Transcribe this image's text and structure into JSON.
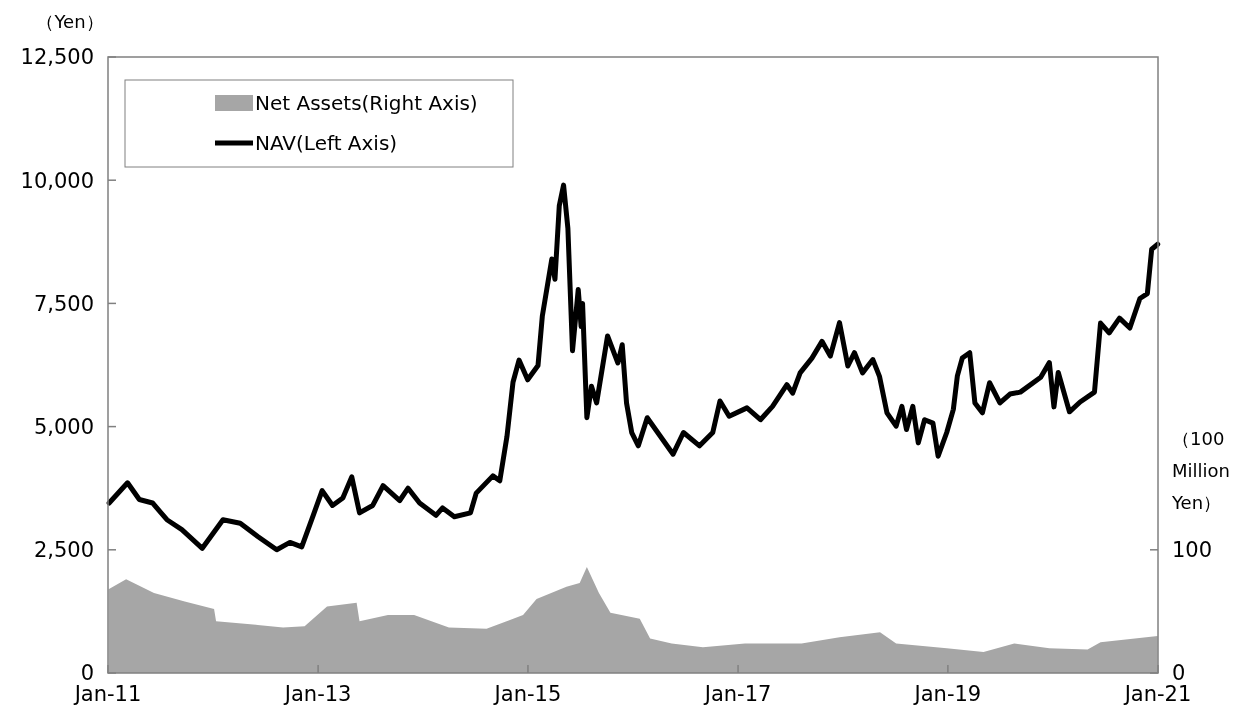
{
  "chart_data": {
    "type": "line",
    "ylabel": "（Yen）",
    "y2label": "（100 Million Yen）",
    "xlim": [
      "2011-01-01",
      "2021-01-01"
    ],
    "xticks": [
      {
        "value": "2011-01-01",
        "label": "Jan-11"
      },
      {
        "value": "2013-01-01",
        "label": "Jan-13"
      },
      {
        "value": "2015-01-01",
        "label": "Jan-15"
      },
      {
        "value": "2017-01-01",
        "label": "Jan-17"
      },
      {
        "value": "2019-01-01",
        "label": "Jan-19"
      },
      {
        "value": "2021-01-01",
        "label": "Jan-21"
      }
    ],
    "ylim": [
      0,
      12500
    ],
    "yticks": [
      {
        "value": 0,
        "label": "0"
      },
      {
        "value": 2500,
        "label": "2,500"
      },
      {
        "value": 5000,
        "label": "5,000"
      },
      {
        "value": 7500,
        "label": "7,500"
      },
      {
        "value": 10000,
        "label": "10,000"
      },
      {
        "value": 12500,
        "label": "12,500"
      }
    ],
    "y2lim": [
      0,
      500
    ],
    "y2ticks": [
      0,
      100
    ],
    "legend": "top left",
    "series": [
      {
        "name": "Net Assets(Right Axis)",
        "type": "area",
        "axis": "y2",
        "color": "#a6a6a6",
        "x": [
          "2011-01-03",
          "2011-03-05",
          "2011-06-10",
          "2011-09-25",
          "2012-01-05",
          "2012-01-12",
          "2012-06-05",
          "2012-09-01",
          "2012-11-15",
          "2013-02-01",
          "2013-05-15",
          "2013-05-25",
          "2013-09-01",
          "2013-12-01",
          "2014-04-01",
          "2014-08-10",
          "2014-12-15",
          "2015-01-31",
          "2015-05-15",
          "2015-06-30",
          "2015-07-25",
          "2015-09-05",
          "2015-10-15",
          "2016-01-25",
          "2016-03-01",
          "2016-05-15",
          "2016-09-01",
          "2017-01-25",
          "2017-08-10",
          "2017-12-20",
          "2018-05-10",
          "2018-07-05",
          "2018-12-28",
          "2019-05-05",
          "2019-08-20",
          "2019-12-20",
          "2020-05-01",
          "2020-06-15",
          "2020-12-31"
        ],
        "values": [
          68,
          76,
          65,
          58,
          52,
          42,
          39,
          37,
          38,
          54,
          57,
          42,
          47,
          47,
          37,
          36,
          47,
          60,
          70,
          73,
          86,
          65,
          49,
          44,
          28,
          24,
          21,
          24,
          24,
          29,
          33,
          24,
          20,
          17,
          24,
          20,
          19,
          25,
          30
        ]
      },
      {
        "name": "NAV(Left Axis)",
        "axis": "y",
        "color": "#000000",
        "x": [
          "2011-01-05",
          "2011-03-10",
          "2011-04-20",
          "2011-06-05",
          "2011-07-25",
          "2011-09-15",
          "2011-11-25",
          "2012-02-05",
          "2012-04-05",
          "2012-06-05",
          "2012-08-10",
          "2012-09-25",
          "2012-11-05",
          "2012-12-15",
          "2013-01-15",
          "2013-02-20",
          "2013-03-28",
          "2013-04-28",
          "2013-05-25",
          "2013-07-10",
          "2013-08-15",
          "2013-10-12",
          "2013-11-10",
          "2013-12-20",
          "2014-02-15",
          "2014-03-10",
          "2014-04-20",
          "2014-06-15",
          "2014-07-05",
          "2014-09-01",
          "2014-09-25",
          "2014-10-20",
          "2014-11-10",
          "2014-12-01",
          "2014-12-31",
          "2015-02-05",
          "2015-02-20",
          "2015-03-25",
          "2015-04-05",
          "2015-04-20",
          "2015-05-05",
          "2015-05-20",
          "2015-06-05",
          "2015-06-25",
          "2015-07-05",
          "2015-07-10",
          "2015-07-25",
          "2015-08-10",
          "2015-08-28",
          "2015-10-05",
          "2015-11-10",
          "2015-11-25",
          "2015-12-10",
          "2015-12-28",
          "2016-01-20",
          "2016-02-20",
          "2016-04-05",
          "2016-05-20",
          "2016-06-25",
          "2016-08-20",
          "2016-10-05",
          "2016-10-30",
          "2016-12-01",
          "2017-02-01",
          "2017-03-20",
          "2017-05-01",
          "2017-06-20",
          "2017-07-10",
          "2017-08-05",
          "2017-09-15",
          "2017-10-20",
          "2017-11-18",
          "2017-12-20",
          "2018-01-18",
          "2018-02-10",
          "2018-03-10",
          "2018-04-15",
          "2018-05-08",
          "2018-06-03",
          "2018-07-05",
          "2018-07-25",
          "2018-08-10",
          "2018-09-01",
          "2018-09-20",
          "2018-10-12",
          "2018-11-10",
          "2018-11-28",
          "2018-12-28",
          "2019-01-20",
          "2019-02-03",
          "2019-02-20",
          "2019-03-18",
          "2019-04-05",
          "2019-05-01",
          "2019-05-26",
          "2019-07-01",
          "2019-08-05",
          "2019-09-10",
          "2019-11-20",
          "2019-12-20",
          "2020-01-05",
          "2020-01-20",
          "2020-02-28",
          "2020-04-05",
          "2020-05-25",
          "2020-06-15",
          "2020-07-15",
          "2020-08-20",
          "2020-09-25",
          "2020-10-30",
          "2020-11-25",
          "2020-12-10",
          "2020-12-31"
        ],
        "values": [
          3450,
          3860,
          3520,
          3450,
          3110,
          2910,
          2530,
          3110,
          3040,
          2770,
          2500,
          2650,
          2560,
          3200,
          3700,
          3400,
          3550,
          3980,
          3250,
          3400,
          3800,
          3500,
          3750,
          3450,
          3200,
          3350,
          3170,
          3250,
          3650,
          4000,
          3900,
          4800,
          5900,
          6350,
          5950,
          6240,
          7240,
          8400,
          7990,
          9480,
          9900,
          9020,
          6540,
          7780,
          7030,
          7500,
          5180,
          5820,
          5480,
          6840,
          6290,
          6660,
          5480,
          4880,
          4610,
          5180,
          4810,
          4440,
          4880,
          4610,
          4880,
          5520,
          5210,
          5380,
          5140,
          5410,
          5850,
          5680,
          6090,
          6390,
          6730,
          6430,
          7110,
          6230,
          6500,
          6090,
          6360,
          6020,
          5280,
          5010,
          5410,
          4940,
          5410,
          4670,
          5140,
          5070,
          4400,
          4880,
          5350,
          6030,
          6390,
          6500,
          5480,
          5280,
          5890,
          5480,
          5660,
          5700,
          6000,
          6300,
          5400,
          6100,
          5300,
          5500,
          5700,
          7100,
          6900,
          7200,
          7000,
          7600,
          7700,
          8600,
          8700
        ]
      }
    ]
  }
}
